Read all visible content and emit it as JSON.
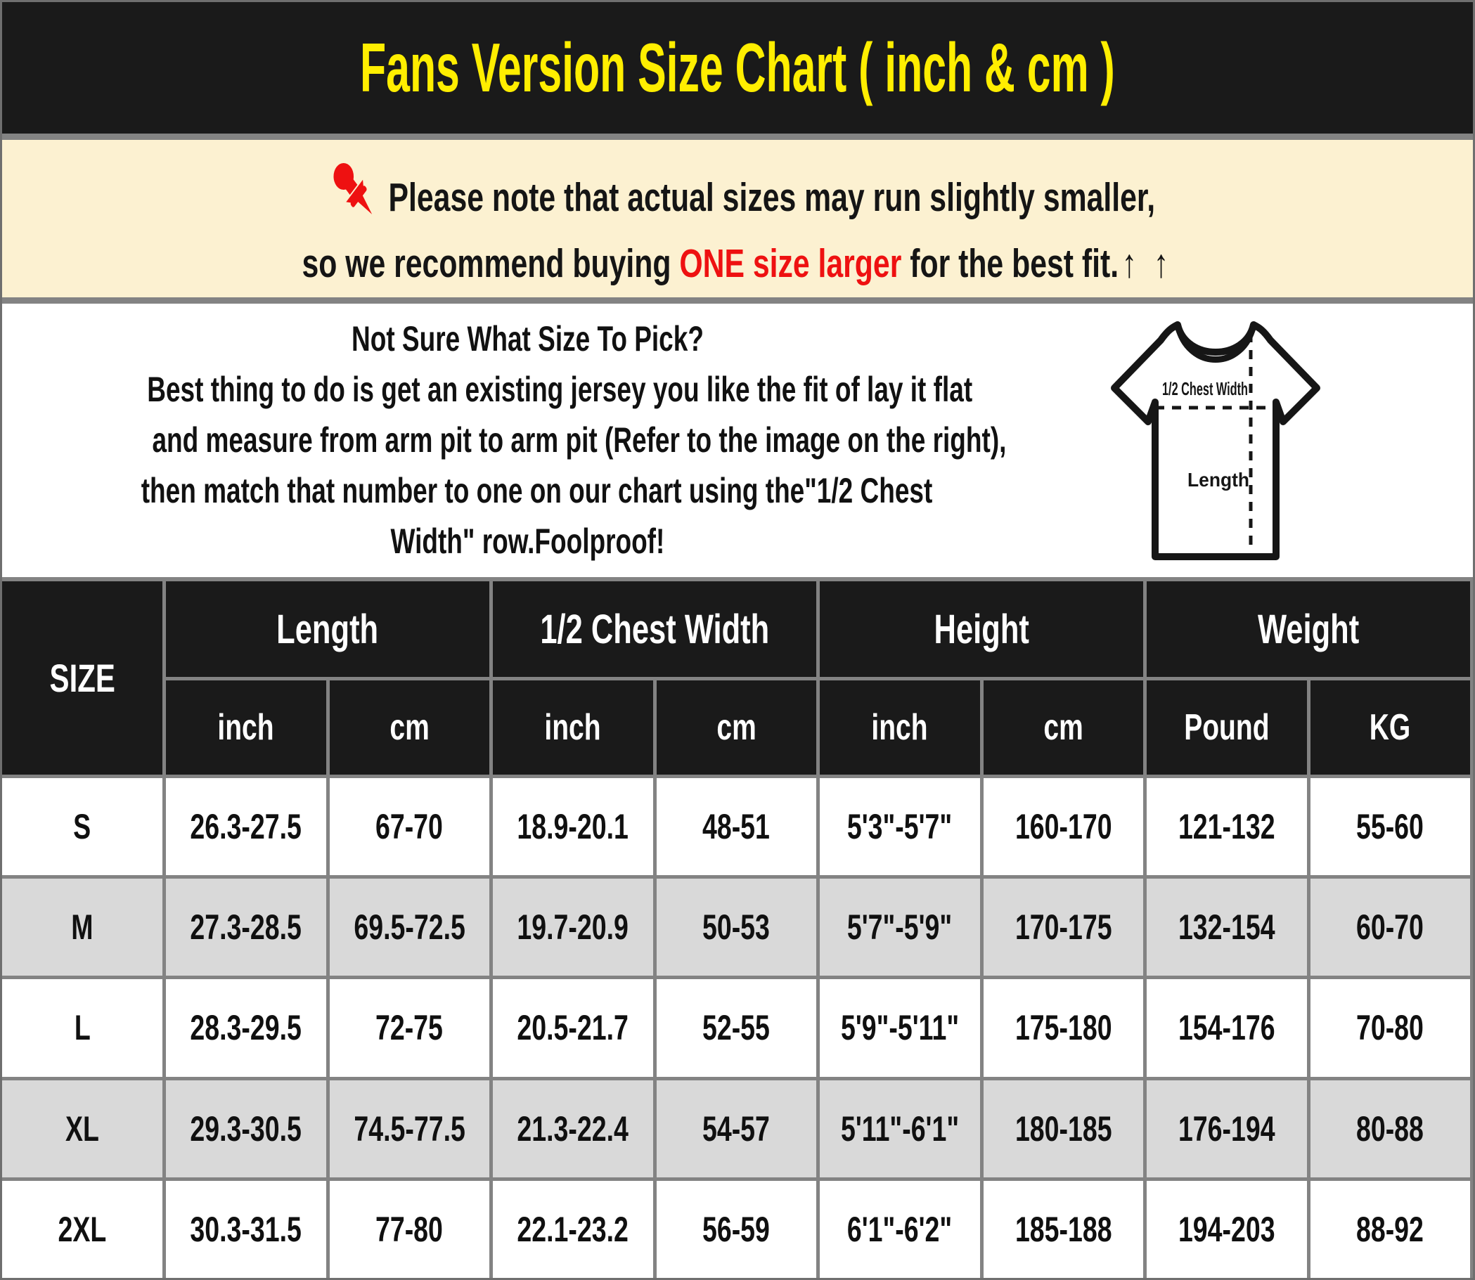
{
  "header": {
    "title": "Fans Version Size Chart ( inch & cm )"
  },
  "notice": {
    "pin_icon": "pushpin-icon",
    "line1": "Please note that actual sizes may run slightly smaller,",
    "line2_prefix": "so we recommend buying ",
    "line2_highlight": "ONE size larger",
    "line2_suffix": " for the best fit.",
    "arrows": "↑ ↑"
  },
  "instructions": {
    "lines": [
      "Not Sure What Size To Pick?",
      "Best thing to do is get an existing jersey you like the fit of lay it flat",
      "and measure from arm pit to arm pit (Refer to the image on the right),",
      "then match that number to one on our chart using the\"1/2 Chest",
      "Width\" row.Foolproof!"
    ]
  },
  "diagram": {
    "chest_label": "1/2 Chest Width",
    "length_label": "Length"
  },
  "table": {
    "size_header": "SIZE",
    "groups": [
      {
        "label": "Length"
      },
      {
        "label": "1/2 Chest Width"
      },
      {
        "label": "Height"
      },
      {
        "label": "Weight"
      }
    ],
    "subheaders": [
      "inch",
      "cm",
      "inch",
      "cm",
      "inch",
      "cm",
      "Pound",
      "KG"
    ],
    "rows": [
      {
        "size": "S",
        "values": [
          "26.3-27.5",
          "67-70",
          "18.9-20.1",
          "48-51",
          "5'3\"-5'7\"",
          "160-170",
          "121-132",
          "55-60"
        ]
      },
      {
        "size": "M",
        "values": [
          "27.3-28.5",
          "69.5-72.5",
          "19.7-20.9",
          "50-53",
          "5'7\"-5'9\"",
          "170-175",
          "132-154",
          "60-70"
        ]
      },
      {
        "size": "L",
        "values": [
          "28.3-29.5",
          "72-75",
          "20.5-21.7",
          "52-55",
          "5'9\"-5'11\"",
          "175-180",
          "154-176",
          "70-80"
        ]
      },
      {
        "size": "XL",
        "values": [
          "29.3-30.5",
          "74.5-77.5",
          "21.3-22.4",
          "54-57",
          "5'11\"-6'1\"",
          "180-185",
          "176-194",
          "80-88"
        ]
      },
      {
        "size": "2XL",
        "values": [
          "30.3-31.5",
          "77-80",
          "22.1-23.2",
          "56-59",
          "6'1\"-6'2\"",
          "185-188",
          "194-203",
          "88-92"
        ]
      }
    ]
  },
  "colors": {
    "title_bar_bg": "#1a1a1a",
    "title_text": "#ffee00",
    "notice_bg": "#fcf1d1",
    "highlight_red": "#ee1111",
    "divider_gray": "#838383",
    "alt_row_gray": "#d9d9d9",
    "text_black": "#111111"
  }
}
